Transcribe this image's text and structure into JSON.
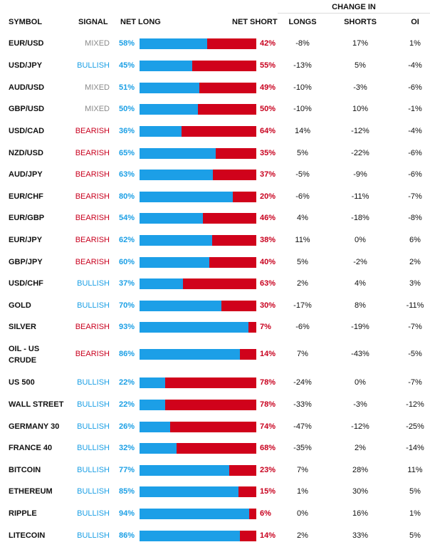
{
  "headers": {
    "symbol": "SYMBOL",
    "signal": "SIGNAL",
    "net_long": "NET LONG",
    "net_short": "NET SHORT",
    "change_in": "CHANGE IN",
    "longs": "LONGS",
    "shorts": "SHORTS",
    "oi": "OI"
  },
  "colors": {
    "long_bar": "#1c9fe7",
    "short_bar": "#d0021b",
    "bullish": "#1b9fe5",
    "bearish": "#c8001e",
    "mixed": "#8a8a8a"
  },
  "rows": [
    {
      "symbol": "EUR/USD",
      "signal": "MIXED",
      "net_long": "58%",
      "net_short": "42%",
      "long_pct": 58,
      "longs": "-8%",
      "shorts": "17%",
      "oi": "1%"
    },
    {
      "symbol": "USD/JPY",
      "signal": "BULLISH",
      "net_long": "45%",
      "net_short": "55%",
      "long_pct": 45,
      "longs": "-13%",
      "shorts": "5%",
      "oi": "-4%"
    },
    {
      "symbol": "AUD/USD",
      "signal": "MIXED",
      "net_long": "51%",
      "net_short": "49%",
      "long_pct": 51,
      "longs": "-10%",
      "shorts": "-3%",
      "oi": "-6%"
    },
    {
      "symbol": "GBP/USD",
      "signal": "MIXED",
      "net_long": "50%",
      "net_short": "50%",
      "long_pct": 50,
      "longs": "-10%",
      "shorts": "10%",
      "oi": "-1%"
    },
    {
      "symbol": "USD/CAD",
      "signal": "BEARISH",
      "net_long": "36%",
      "net_short": "64%",
      "long_pct": 36,
      "longs": "14%",
      "shorts": "-12%",
      "oi": "-4%"
    },
    {
      "symbol": "NZD/USD",
      "signal": "BEARISH",
      "net_long": "65%",
      "net_short": "35%",
      "long_pct": 65,
      "longs": "5%",
      "shorts": "-22%",
      "oi": "-6%"
    },
    {
      "symbol": "AUD/JPY",
      "signal": "BEARISH",
      "net_long": "63%",
      "net_short": "37%",
      "long_pct": 63,
      "longs": "-5%",
      "shorts": "-9%",
      "oi": "-6%"
    },
    {
      "symbol": "EUR/CHF",
      "signal": "BEARISH",
      "net_long": "80%",
      "net_short": "20%",
      "long_pct": 80,
      "longs": "-6%",
      "shorts": "-11%",
      "oi": "-7%"
    },
    {
      "symbol": "EUR/GBP",
      "signal": "BEARISH",
      "net_long": "54%",
      "net_short": "46%",
      "long_pct": 54,
      "longs": "4%",
      "shorts": "-18%",
      "oi": "-8%"
    },
    {
      "symbol": "EUR/JPY",
      "signal": "BEARISH",
      "net_long": "62%",
      "net_short": "38%",
      "long_pct": 62,
      "longs": "11%",
      "shorts": "0%",
      "oi": "6%"
    },
    {
      "symbol": "GBP/JPY",
      "signal": "BEARISH",
      "net_long": "60%",
      "net_short": "40%",
      "long_pct": 60,
      "longs": "5%",
      "shorts": "-2%",
      "oi": "2%"
    },
    {
      "symbol": "USD/CHF",
      "signal": "BULLISH",
      "net_long": "37%",
      "net_short": "63%",
      "long_pct": 37,
      "longs": "2%",
      "shorts": "4%",
      "oi": "3%"
    },
    {
      "symbol": "GOLD",
      "signal": "BULLISH",
      "net_long": "70%",
      "net_short": "30%",
      "long_pct": 70,
      "longs": "-17%",
      "shorts": "8%",
      "oi": "-11%"
    },
    {
      "symbol": "SILVER",
      "signal": "BEARISH",
      "net_long": "93%",
      "net_short": "7%",
      "long_pct": 93,
      "longs": "-6%",
      "shorts": "-19%",
      "oi": "-7%"
    },
    {
      "symbol": "OIL - US CRUDE",
      "signal": "BEARISH",
      "net_long": "86%",
      "net_short": "14%",
      "long_pct": 86,
      "longs": "7%",
      "shorts": "-43%",
      "oi": "-5%"
    },
    {
      "symbol": "US 500",
      "signal": "BULLISH",
      "net_long": "22%",
      "net_short": "78%",
      "long_pct": 22,
      "longs": "-24%",
      "shorts": "0%",
      "oi": "-7%"
    },
    {
      "symbol": "WALL STREET",
      "signal": "BULLISH",
      "net_long": "22%",
      "net_short": "78%",
      "long_pct": 22,
      "longs": "-33%",
      "shorts": "-3%",
      "oi": "-12%"
    },
    {
      "symbol": "GERMANY 30",
      "signal": "BULLISH",
      "net_long": "26%",
      "net_short": "74%",
      "long_pct": 26,
      "longs": "-47%",
      "shorts": "-12%",
      "oi": "-25%"
    },
    {
      "symbol": "FRANCE 40",
      "signal": "BULLISH",
      "net_long": "32%",
      "net_short": "68%",
      "long_pct": 32,
      "longs": "-35%",
      "shorts": "2%",
      "oi": "-14%"
    },
    {
      "symbol": "BITCOIN",
      "signal": "BULLISH",
      "net_long": "77%",
      "net_short": "23%",
      "long_pct": 77,
      "longs": "7%",
      "shorts": "28%",
      "oi": "11%"
    },
    {
      "symbol": "ETHEREUM",
      "signal": "BULLISH",
      "net_long": "85%",
      "net_short": "15%",
      "long_pct": 85,
      "longs": "1%",
      "shorts": "30%",
      "oi": "5%"
    },
    {
      "symbol": "RIPPLE",
      "signal": "BULLISH",
      "net_long": "94%",
      "net_short": "6%",
      "long_pct": 94,
      "longs": "0%",
      "shorts": "16%",
      "oi": "1%"
    },
    {
      "symbol": "LITECOIN",
      "signal": "BULLISH",
      "net_long": "86%",
      "net_short": "14%",
      "long_pct": 86,
      "longs": "2%",
      "shorts": "33%",
      "oi": "5%"
    }
  ]
}
